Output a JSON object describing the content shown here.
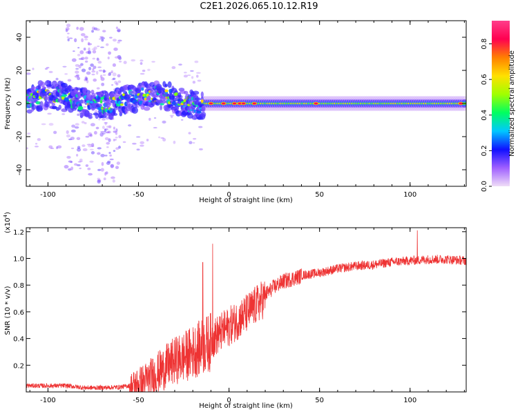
{
  "page_title": "C2E1.2026.065.10.12.R19",
  "chart_data": [
    {
      "type": "heatmap",
      "xlabel": "Height of straight line (km)",
      "ylabel": "Frequency (Hz)",
      "xlim": [
        -112,
        131
      ],
      "ylim": [
        -50,
        50
      ],
      "x_ticks": [
        -100,
        -50,
        0,
        50,
        100
      ],
      "x_tick_labels": [
        "-100",
        "-50",
        "0",
        "50",
        "100"
      ],
      "y_ticks": [
        -40,
        -20,
        0,
        20,
        40
      ],
      "y_tick_labels": [
        "-40",
        "-20",
        "0",
        "20",
        "40"
      ],
      "colorbar": {
        "label": "Normalized spectral amplitude",
        "range": [
          0,
          0.93
        ],
        "ticks": [
          0.0,
          0.2,
          0.4,
          0.6,
          0.8
        ],
        "tick_labels": [
          "0.0",
          "0.2",
          "0.4",
          "0.6",
          "0.8"
        ],
        "colors": [
          "#f0ddf7",
          "#a060ff",
          "#1010ff",
          "#00c8ff",
          "#00ff60",
          "#a0ff00",
          "#ffe000",
          "#ff8000",
          "#ff0050",
          "#ff3d8a"
        ]
      },
      "features": {
        "noisy_region_x": [
          -112,
          -14
        ],
        "noisy_band_y": [
          -8,
          8
        ],
        "noisy_scatter_x": [
          -90,
          -60
        ],
        "stable_band_x": [
          -14,
          131
        ],
        "stable_band_y": [
          -2,
          2
        ],
        "hot_spots_x": [
          -10,
          -3,
          3,
          6,
          8,
          14,
          48,
          128
        ]
      }
    },
    {
      "type": "line",
      "xlabel": "Height of straight line (km)",
      "ylabel": "SNR (10 * v/v)",
      "multiplier_label": "(x10",
      "multiplier_exp": "4",
      "multiplier_close": ")",
      "xlim": [
        -112,
        131
      ],
      "ylim": [
        0,
        1.23
      ],
      "x_ticks": [
        -100,
        -50,
        0,
        50,
        100
      ],
      "x_tick_labels": [
        "-100",
        "-50",
        "0",
        "50",
        "100"
      ],
      "y_ticks": [
        0.2,
        0.4,
        0.6,
        0.8,
        1.0,
        1.2
      ],
      "y_tick_labels": [
        "0.2",
        "0.4",
        "0.6",
        "0.8",
        "1.0",
        "1.2"
      ],
      "color": "#ee3333",
      "series": [
        {
          "name": "SNR",
          "x": [
            -112,
            -100,
            -90,
            -80,
            -70,
            -60,
            -55,
            -50,
            -45,
            -40,
            -35,
            -30,
            -25,
            -20,
            -15,
            -10,
            -5,
            0,
            5,
            10,
            15,
            20,
            25,
            30,
            40,
            50,
            60,
            70,
            80,
            90,
            100,
            110,
            120,
            131
          ],
          "y": [
            0.05,
            0.05,
            0.05,
            0.035,
            0.035,
            0.04,
            0.05,
            0.08,
            0.12,
            0.17,
            0.22,
            0.27,
            0.3,
            0.34,
            0.38,
            0.42,
            0.47,
            0.52,
            0.57,
            0.62,
            0.68,
            0.74,
            0.8,
            0.84,
            0.88,
            0.9,
            0.93,
            0.95,
            0.96,
            0.98,
            0.99,
            1.0,
            1.0,
            0.99
          ],
          "spikes": [
            {
              "x": -14.5,
              "y": 0.97
            },
            {
              "x": -9,
              "y": 1.11
            },
            {
              "x": 104,
              "y": 1.21
            }
          ]
        }
      ]
    }
  ]
}
